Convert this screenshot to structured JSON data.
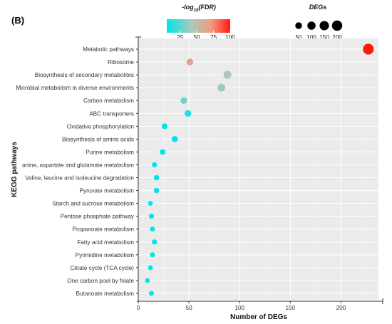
{
  "panel_label": "(B)",
  "chart_data": {
    "type": "scatter",
    "xlabel": "Number of DEGs",
    "ylabel": "KEGG pathways",
    "xlim": [
      0,
      237
    ],
    "xticks": [
      0,
      50,
      100,
      150,
      200
    ],
    "grid": true,
    "background": "#ebebeb",
    "categories": [
      "Metabolic pathways",
      "Ribosome",
      "Biosynthesis of secondary metabolites",
      "Microbial metabolism in diverse environments",
      "Carbon metabolism",
      "ABC transporters",
      "Oxidative phosphorylation",
      "Biosynthesis of amino acids",
      "Purine metabolism",
      "anine, aspartate and glutamate metabolism",
      "Valine, leucine and isoleucine degradation",
      "Pyruvate metabolism",
      "Starch and sucrose metabolism",
      "Pentose phosphate pathway",
      "Propanoate metabolism",
      "Fatty acid metabolism",
      "Pyrimidine metabolism",
      "Citrate cycle (TCA cycle)",
      "One carbon pool by folate",
      "Butanoate metabolism"
    ],
    "points": [
      {
        "x": 227,
        "fdr": 100
      },
      {
        "x": 51,
        "fdr": 65
      },
      {
        "x": 88,
        "fdr": 45
      },
      {
        "x": 82,
        "fdr": 40
      },
      {
        "x": 45,
        "fdr": 28
      },
      {
        "x": 49,
        "fdr": 12
      },
      {
        "x": 26,
        "fdr": 5
      },
      {
        "x": 36,
        "fdr": 5
      },
      {
        "x": 24,
        "fdr": 5
      },
      {
        "x": 16,
        "fdr": 5
      },
      {
        "x": 18,
        "fdr": 5
      },
      {
        "x": 18,
        "fdr": 5
      },
      {
        "x": 12,
        "fdr": 5
      },
      {
        "x": 13,
        "fdr": 5
      },
      {
        "x": 14,
        "fdr": 5
      },
      {
        "x": 16,
        "fdr": 5
      },
      {
        "x": 14,
        "fdr": 5
      },
      {
        "x": 12,
        "fdr": 5
      },
      {
        "x": 9,
        "fdr": 5
      },
      {
        "x": 13,
        "fdr": 5
      }
    ],
    "color_legend": {
      "title_prefix": "-log",
      "title_sub": "10",
      "title_suffix": "(FDR)",
      "ticks": [
        "25",
        "50",
        "75",
        "100"
      ],
      "tick_values": [
        25,
        50,
        75,
        100
      ],
      "range": [
        5,
        100
      ],
      "colors": [
        "#00e5ea",
        "#aec8b8",
        "#f29a80",
        "#ff1a0a"
      ]
    },
    "size_legend": {
      "title": "DEGs",
      "labels": [
        "50",
        "100",
        "150",
        "200"
      ],
      "values": [
        50,
        100,
        150,
        200
      ]
    }
  }
}
